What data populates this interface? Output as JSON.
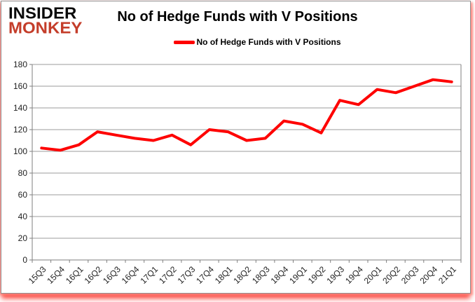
{
  "logo": {
    "line1": "INSIDER",
    "line2": "MONKEY",
    "monkey_color": "#c43d2a"
  },
  "title": "No of Hedge Funds with V Positions",
  "legend": {
    "label": "No of Hedge Funds with V Positions",
    "swatch_color": "#fe0000"
  },
  "chart_data": {
    "type": "line",
    "title": "No of Hedge Funds with V Positions",
    "categories": [
      "15Q3",
      "15Q4",
      "16Q1",
      "16Q2",
      "16Q3",
      "16Q4",
      "17Q1",
      "17Q2",
      "17Q3",
      "17Q4",
      "18Q1",
      "18Q2",
      "18Q3",
      "18Q4",
      "19Q1",
      "19Q2",
      "19Q3",
      "19Q4",
      "20Q1",
      "20Q2",
      "20Q3",
      "20Q4",
      "21Q1"
    ],
    "series": [
      {
        "name": "No of Hedge Funds with V Positions",
        "color": "#fe0000",
        "values": [
          103,
          101,
          106,
          118,
          115,
          112,
          110,
          115,
          106,
          120,
          118,
          110,
          112,
          128,
          125,
          117,
          147,
          143,
          157,
          154,
          160,
          166,
          164
        ]
      }
    ],
    "xlabel": "",
    "ylabel": "",
    "ylim": [
      0,
      180
    ],
    "ytick_step": 20,
    "y_ticks": [
      0,
      20,
      40,
      60,
      80,
      100,
      120,
      140,
      160,
      180
    ],
    "grid": true,
    "legend_position": "top-center",
    "colors": {
      "grid": "#9b9b9b",
      "axis": "#7f7f7f",
      "tick_text": "#1f1f1f"
    }
  }
}
